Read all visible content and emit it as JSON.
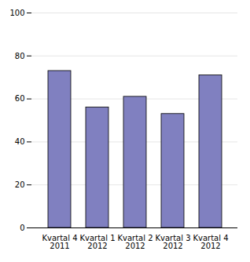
{
  "chart_data": {
    "type": "bar",
    "categories": [
      "Kvartal 4\n2011",
      "Kvartal 1\n2012",
      "Kvartal 2\n2012",
      "Kvartal 3\n2012",
      "Kvartal 4\n2012"
    ],
    "values": [
      73,
      56,
      61,
      53,
      71
    ],
    "color": "#8080c0",
    "ylim": [
      0,
      100
    ],
    "yticks": [
      0,
      20,
      40,
      60,
      80,
      100
    ],
    "grid": true
  }
}
